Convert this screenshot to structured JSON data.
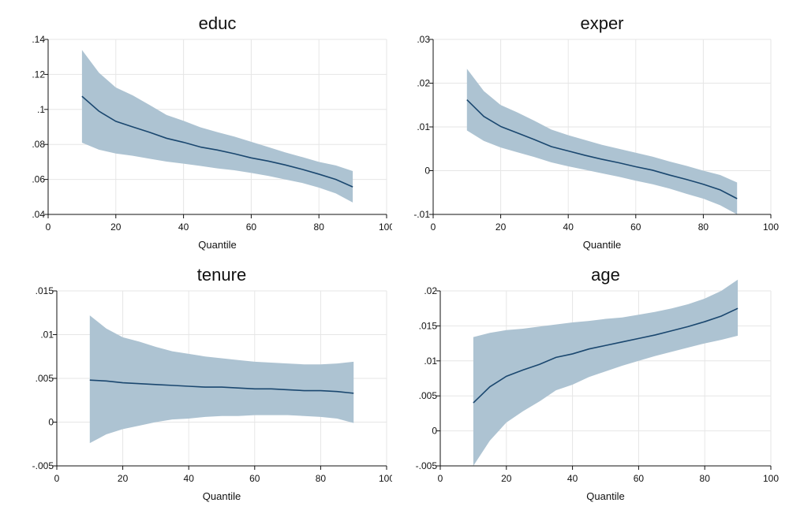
{
  "chart_data": [
    {
      "type": "area",
      "title": "educ",
      "xlabel": "Quantile",
      "ylabel": "",
      "xlim": [
        0,
        100
      ],
      "ylim": [
        0.04,
        0.14
      ],
      "x_ticks": [
        0,
        20,
        40,
        60,
        80,
        100
      ],
      "x_tick_labels": [
        "0",
        "20",
        "40",
        "60",
        "80",
        "100"
      ],
      "y_ticks": [
        0.04,
        0.06,
        0.08,
        0.1,
        0.12,
        0.14
      ],
      "y_tick_labels": [
        ".04",
        ".06",
        ".08",
        ".1",
        ".12",
        ".14"
      ],
      "grid": true,
      "x": [
        10,
        15,
        20,
        25,
        30,
        35,
        40,
        45,
        50,
        55,
        60,
        65,
        70,
        75,
        80,
        85,
        90
      ],
      "series": [
        {
          "values": [
            0.1075,
            0.099,
            0.0932,
            0.09,
            0.0869,
            0.0835,
            0.0812,
            0.0785,
            0.0768,
            0.0747,
            0.0723,
            0.0705,
            0.0683,
            0.0658,
            0.063,
            0.06,
            0.0557
          ]
        }
      ],
      "band_upper": [
        0.134,
        0.121,
        0.1125,
        0.108,
        0.1025,
        0.0968,
        0.0935,
        0.0898,
        0.087,
        0.0845,
        0.0815,
        0.0785,
        0.0755,
        0.0728,
        0.07,
        0.068,
        0.0648
      ],
      "band_lower": [
        0.081,
        0.077,
        0.0748,
        0.0735,
        0.0718,
        0.0702,
        0.069,
        0.0677,
        0.0663,
        0.0652,
        0.0637,
        0.062,
        0.06,
        0.058,
        0.0553,
        0.052,
        0.0468
      ]
    },
    {
      "type": "area",
      "title": "exper",
      "xlabel": "Quantile",
      "ylabel": "",
      "xlim": [
        0,
        100
      ],
      "ylim": [
        -0.01,
        0.03
      ],
      "x_ticks": [
        0,
        20,
        40,
        60,
        80,
        100
      ],
      "x_tick_labels": [
        "0",
        "20",
        "40",
        "60",
        "80",
        "100"
      ],
      "y_ticks": [
        -0.01,
        0,
        0.01,
        0.02,
        0.03
      ],
      "y_tick_labels": [
        "-.01",
        "0",
        ".01",
        ".02",
        ".03"
      ],
      "grid": true,
      "x": [
        10,
        15,
        20,
        25,
        30,
        35,
        40,
        45,
        50,
        55,
        60,
        65,
        70,
        75,
        80,
        85,
        90
      ],
      "series": [
        {
          "values": [
            0.0162,
            0.0124,
            0.0101,
            0.0086,
            0.0071,
            0.0055,
            0.0045,
            0.0035,
            0.0026,
            0.0018,
            0.0009,
            0.0001,
            -0.001,
            -0.002,
            -0.0031,
            -0.0044,
            -0.0064
          ]
        }
      ],
      "band_upper": [
        0.0233,
        0.0182,
        0.015,
        0.0133,
        0.0114,
        0.0094,
        0.0081,
        0.007,
        0.0059,
        0.005,
        0.0041,
        0.0032,
        0.0021,
        0.0011,
        0.0,
        -0.001,
        -0.0027
      ],
      "band_lower": [
        0.0092,
        0.0068,
        0.0053,
        0.0042,
        0.0031,
        0.0019,
        0.001,
        0.0002,
        -0.0006,
        -0.0014,
        -0.0023,
        -0.0031,
        -0.0041,
        -0.0053,
        -0.0064,
        -0.0079,
        -0.01
      ]
    },
    {
      "type": "area",
      "title": "tenure",
      "xlabel": "Quantile",
      "ylabel": "",
      "xlim": [
        0,
        100
      ],
      "ylim": [
        -0.005,
        0.015
      ],
      "x_ticks": [
        0,
        20,
        40,
        60,
        80,
        100
      ],
      "x_tick_labels": [
        "0",
        "20",
        "40",
        "60",
        "80",
        "100"
      ],
      "y_ticks": [
        -0.005,
        0,
        0.005,
        0.01,
        0.015
      ],
      "y_tick_labels": [
        "-.005",
        "0",
        ".005",
        ".01",
        ".015"
      ],
      "grid": true,
      "x": [
        10,
        15,
        20,
        25,
        30,
        35,
        40,
        45,
        50,
        55,
        60,
        65,
        70,
        75,
        80,
        85,
        90
      ],
      "series": [
        {
          "values": [
            0.0048,
            0.0047,
            0.0045,
            0.0044,
            0.0043,
            0.0042,
            0.0041,
            0.004,
            0.004,
            0.0039,
            0.0038,
            0.0038,
            0.0037,
            0.0036,
            0.0036,
            0.0035,
            0.0033
          ]
        }
      ],
      "band_upper": [
        0.0122,
        0.0107,
        0.0097,
        0.0092,
        0.0086,
        0.0081,
        0.0078,
        0.0075,
        0.0073,
        0.0071,
        0.0069,
        0.0068,
        0.0067,
        0.0066,
        0.0066,
        0.0067,
        0.0069
      ],
      "band_lower": [
        -0.0024,
        -0.0014,
        -0.0008,
        -0.0004,
        0.0,
        0.0003,
        0.0004,
        0.0006,
        0.0007,
        0.0007,
        0.0008,
        0.0008,
        0.0008,
        0.0007,
        0.0006,
        0.0004,
        -0.0001
      ]
    },
    {
      "type": "area",
      "title": "age",
      "xlabel": "Quantile",
      "ylabel": "",
      "xlim": [
        0,
        100
      ],
      "ylim": [
        -0.005,
        0.02
      ],
      "x_ticks": [
        0,
        20,
        40,
        60,
        80,
        100
      ],
      "x_tick_labels": [
        "0",
        "20",
        "40",
        "60",
        "80",
        "100"
      ],
      "y_ticks": [
        -0.005,
        0,
        0.005,
        0.01,
        0.015,
        0.02
      ],
      "y_tick_labels": [
        "-.005",
        "0",
        ".005",
        ".01",
        ".015",
        ".02"
      ],
      "grid": true,
      "x": [
        10,
        15,
        20,
        25,
        30,
        35,
        40,
        45,
        50,
        55,
        60,
        65,
        70,
        75,
        80,
        85,
        90
      ],
      "series": [
        {
          "values": [
            0.004,
            0.0063,
            0.0078,
            0.0087,
            0.0095,
            0.0105,
            0.011,
            0.0117,
            0.0122,
            0.0127,
            0.0132,
            0.0137,
            0.0143,
            0.0149,
            0.0156,
            0.0164,
            0.0175
          ]
        }
      ],
      "band_upper": [
        0.0134,
        0.014,
        0.0144,
        0.0146,
        0.0149,
        0.0152,
        0.0155,
        0.0157,
        0.016,
        0.0162,
        0.0166,
        0.017,
        0.0175,
        0.0181,
        0.0189,
        0.02,
        0.0216
      ],
      "band_lower": [
        -0.005,
        -0.0014,
        0.0012,
        0.0028,
        0.0042,
        0.0058,
        0.0066,
        0.0077,
        0.0085,
        0.0093,
        0.01,
        0.0107,
        0.0113,
        0.0119,
        0.0125,
        0.013,
        0.0136
      ]
    }
  ]
}
